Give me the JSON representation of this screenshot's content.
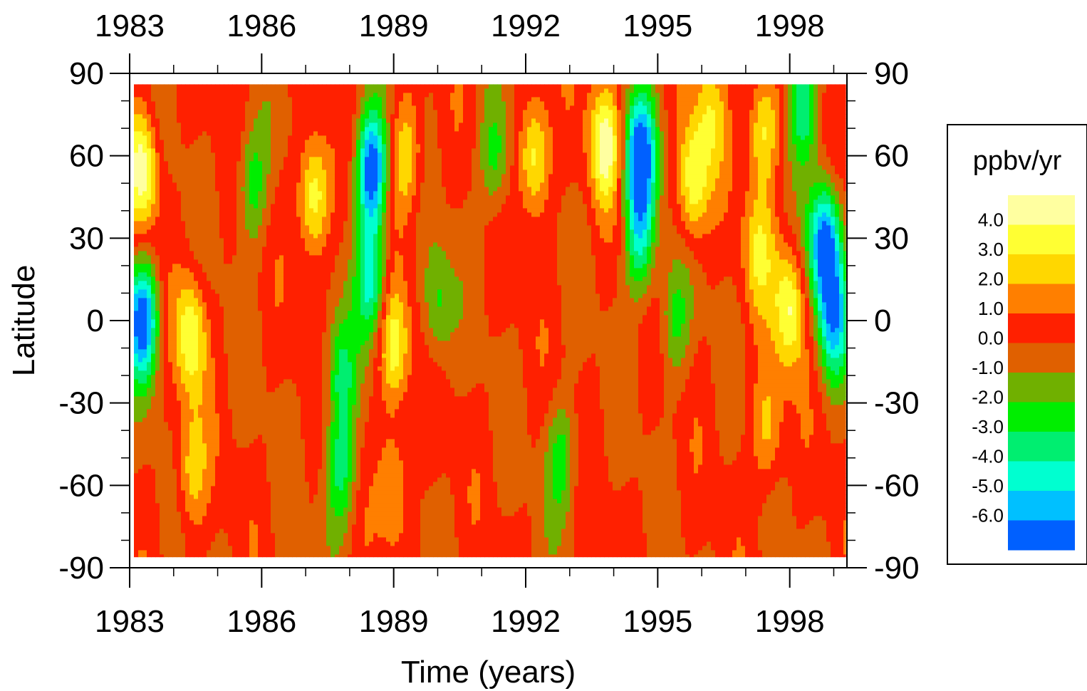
{
  "chart_data": {
    "type": "heatmap",
    "title": "",
    "xlabel": "Time (years)",
    "ylabel": "Latitude",
    "xlim": [
      1983,
      1999.3
    ],
    "ylim": [
      -90,
      90
    ],
    "data_lat_range": [
      -86,
      86
    ],
    "x_ticks": [
      "1983",
      "1986",
      "1989",
      "1992",
      "1995",
      "1998"
    ],
    "y_ticks": [
      "90",
      "60",
      "30",
      "0",
      "-30",
      "-60",
      "-90"
    ],
    "x_tick_values": [
      1983,
      1986,
      1989,
      1992,
      1995,
      1998
    ],
    "y_tick_values": [
      90,
      60,
      30,
      0,
      -30,
      -60,
      -90
    ],
    "grid": false,
    "colorbar": {
      "title": "ppbv/yr",
      "labels": [
        "4.0",
        "3.0",
        "2.0",
        "1.0",
        "0.0",
        "-1.0",
        "-2.0",
        "-3.0",
        "-4.0",
        "-5.0",
        "-6.0"
      ],
      "colors": [
        "#FFFFA0",
        "#FFFF33",
        "#FFD700",
        "#FF7F00",
        "#FF2000",
        "#E06000",
        "#70B000",
        "#00EE00",
        "#00EE70",
        "#00FFD0",
        "#00C0FF",
        "#0060FF"
      ]
    },
    "anomaly_centers": [
      {
        "year": 1983.3,
        "lat": 0,
        "value": -7.0
      },
      {
        "year": 1983.3,
        "lat": 55,
        "value": 4.5
      },
      {
        "year": 1984.4,
        "lat": -5,
        "value": 3.8
      },
      {
        "year": 1984.4,
        "lat": -55,
        "value": 2.5
      },
      {
        "year": 1985.8,
        "lat": 50,
        "value": -2.8
      },
      {
        "year": 1987.2,
        "lat": 45,
        "value": 4.2
      },
      {
        "year": 1987.8,
        "lat": -20,
        "value": -3.2
      },
      {
        "year": 1987.8,
        "lat": -55,
        "value": -3.5
      },
      {
        "year": 1988.5,
        "lat": 55,
        "value": -7.2
      },
      {
        "year": 1988.5,
        "lat": 15,
        "value": -4.5
      },
      {
        "year": 1989.0,
        "lat": -10,
        "value": 3.6
      },
      {
        "year": 1989.0,
        "lat": -60,
        "value": 2.6
      },
      {
        "year": 1989.3,
        "lat": 60,
        "value": 3.0
      },
      {
        "year": 1990.0,
        "lat": 5,
        "value": -2.5
      },
      {
        "year": 1991.3,
        "lat": 60,
        "value": -2.8
      },
      {
        "year": 1992.2,
        "lat": 60,
        "value": 4.0
      },
      {
        "year": 1992.8,
        "lat": -50,
        "value": -2.6
      },
      {
        "year": 1993.8,
        "lat": 65,
        "value": 4.3
      },
      {
        "year": 1994.6,
        "lat": 60,
        "value": -7.0
      },
      {
        "year": 1994.6,
        "lat": 30,
        "value": -4.2
      },
      {
        "year": 1995.4,
        "lat": 0,
        "value": -2.3
      },
      {
        "year": 1995.8,
        "lat": 50,
        "value": 4.0
      },
      {
        "year": 1996.2,
        "lat": 75,
        "value": 2.4
      },
      {
        "year": 1997.4,
        "lat": 70,
        "value": 3.6
      },
      {
        "year": 1997.3,
        "lat": 25,
        "value": 2.6
      },
      {
        "year": 1997.5,
        "lat": -40,
        "value": 2.6
      },
      {
        "year": 1998.0,
        "lat": 5,
        "value": 4.0
      },
      {
        "year": 1998.3,
        "lat": 80,
        "value": -4.2
      },
      {
        "year": 1998.8,
        "lat": 28,
        "value": -7.0
      },
      {
        "year": 1999.0,
        "lat": 0,
        "value": -5.0
      }
    ]
  }
}
